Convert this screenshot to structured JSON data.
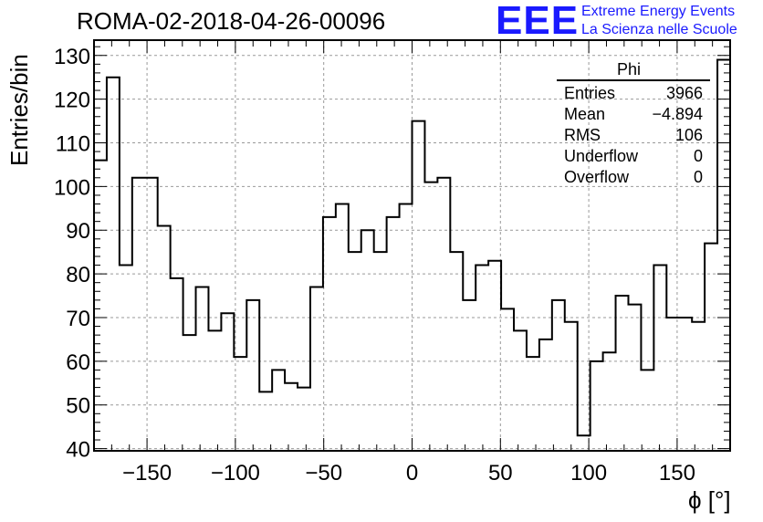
{
  "header": {
    "title": "ROMA-02-2018-04-26-00096",
    "logo_mark": "EEE",
    "logo_line1": "Extreme Energy Events",
    "logo_line2": "La Scienza nelle Scuole"
  },
  "stats_box": {
    "name": "Phi",
    "rows": [
      {
        "label": "Entries",
        "value": "3966"
      },
      {
        "label": "Mean",
        "value": "−4.894"
      },
      {
        "label": "RMS",
        "value": "106"
      },
      {
        "label": "Underflow",
        "value": "0"
      },
      {
        "label": "Overflow",
        "value": "0"
      }
    ]
  },
  "chart_data": {
    "type": "bar",
    "title": "ROMA-02-2018-04-26-00096",
    "xlabel": "ϕ [°]",
    "ylabel": "Entries/bin",
    "xlim": [
      -180,
      180
    ],
    "ylim": [
      39.5,
      133.5
    ],
    "grid": true,
    "x_ticks": [
      -150,
      -100,
      -50,
      0,
      50,
      100,
      150
    ],
    "x_tick_labels": [
      "−150",
      "−100",
      "−50",
      "0",
      "50",
      "100",
      "150"
    ],
    "y_ticks": [
      40,
      50,
      60,
      70,
      80,
      90,
      100,
      110,
      120,
      130
    ],
    "bin_width": 7.2,
    "bin_edges_start": -180,
    "values": [
      106,
      125,
      82,
      102,
      102,
      91,
      79,
      66,
      77,
      67,
      71,
      61,
      74,
      53,
      58,
      55,
      54,
      77,
      93,
      96,
      85,
      90,
      85,
      93,
      96,
      115,
      101,
      102,
      85,
      74,
      82,
      83,
      72,
      67,
      61,
      65,
      74,
      69,
      43,
      60,
      62,
      75,
      73,
      58,
      82,
      70,
      70,
      69,
      87,
      129
    ]
  }
}
